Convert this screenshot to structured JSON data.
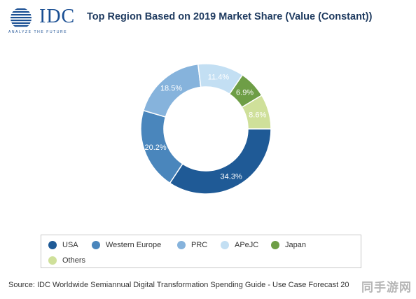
{
  "logo": {
    "wordmark": "IDC",
    "tagline": "ANALYZE THE FUTURE",
    "brand_color": "#1a4f93"
  },
  "chart_data": {
    "type": "pie",
    "donut": true,
    "title": "Top Region Based on 2019 Market Share (Value (Constant))",
    "categories": [
      "USA",
      "Western Europe",
      "PRC",
      "APeJC",
      "Japan",
      "Others"
    ],
    "values": [
      34.3,
      20.2,
      18.5,
      11.4,
      6.9,
      8.6
    ],
    "data_labels": [
      "34.3%",
      "20.2%",
      "18.5%",
      "11.4%",
      "6.9%",
      "8.6%"
    ],
    "colors": [
      "#1f5a96",
      "#4a86bc",
      "#86b3dc",
      "#c3dff3",
      "#6e9e46",
      "#cfe09a"
    ],
    "label_colors": [
      "#ffffff",
      "#ffffff",
      "#ffffff",
      "#ffffff",
      "#ffffff",
      "#ffffff"
    ],
    "legend_position": "bottom"
  },
  "legend": {
    "items": [
      {
        "label": "USA",
        "color": "#1f5a96"
      },
      {
        "label": "Western Europe",
        "color": "#4a86bc"
      },
      {
        "label": "PRC",
        "color": "#86b3dc"
      },
      {
        "label": "APeJC",
        "color": "#c3dff3"
      },
      {
        "label": "Japan",
        "color": "#6e9e46"
      },
      {
        "label": "Others",
        "color": "#cfe09a"
      }
    ]
  },
  "source": "Source: IDC Worldwide Semiannual Digital Transformation Spending Guide - Use Case Forecast 20",
  "watermark": "同手游网"
}
